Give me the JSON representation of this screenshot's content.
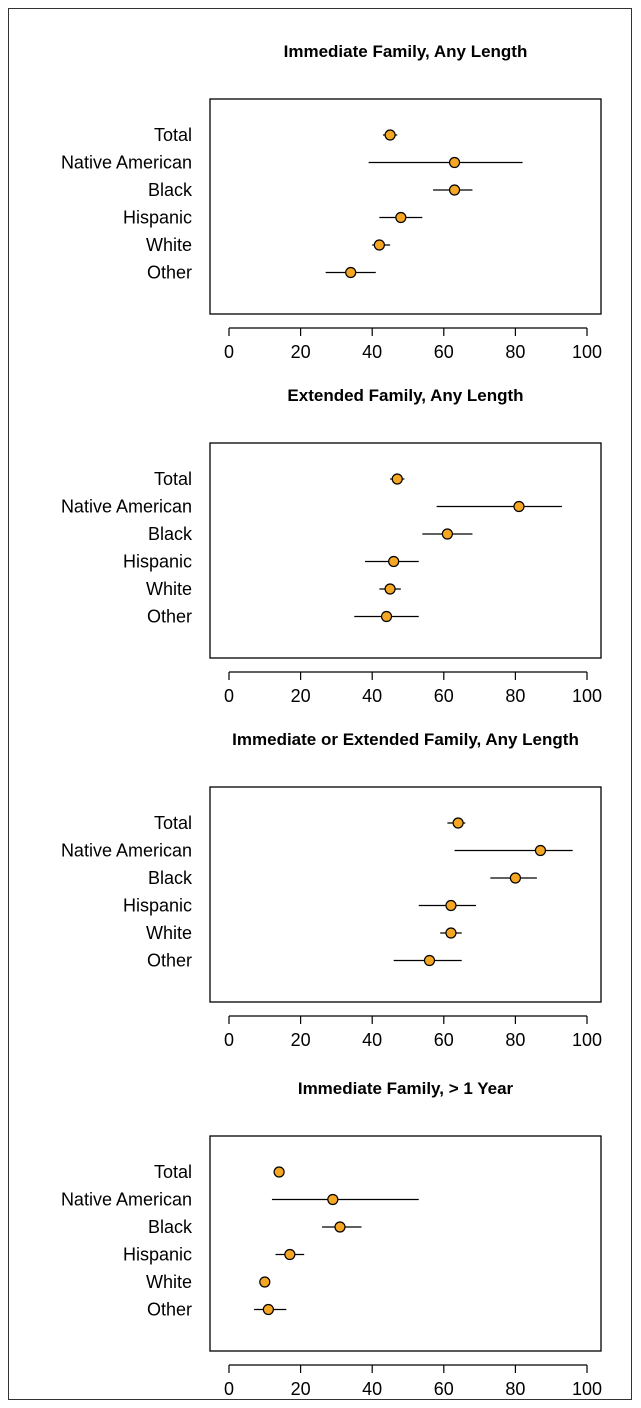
{
  "colors": {
    "point_fill": "#f5a623",
    "point_stroke": "#000000",
    "line": "#000000",
    "frame": "#333333"
  },
  "chart_data": [
    {
      "type": "scatter",
      "title": "Immediate Family, Any Length",
      "categories": [
        "Total",
        "Native American",
        "Black",
        "Hispanic",
        "White",
        "Other"
      ],
      "values": [
        45,
        63,
        63,
        48,
        42,
        34
      ],
      "ci_low": [
        43,
        39,
        57,
        42,
        40,
        27
      ],
      "ci_high": [
        47,
        82,
        68,
        54,
        45,
        41
      ],
      "xlim": [
        0,
        100
      ],
      "xticks": [
        0,
        20,
        40,
        60,
        80,
        100
      ],
      "grid": false
    },
    {
      "type": "scatter",
      "title": "Extended Family, Any Length",
      "categories": [
        "Total",
        "Native American",
        "Black",
        "Hispanic",
        "White",
        "Other"
      ],
      "values": [
        47,
        81,
        61,
        46,
        45,
        44
      ],
      "ci_low": [
        45,
        58,
        54,
        38,
        42,
        35
      ],
      "ci_high": [
        49,
        93,
        68,
        53,
        48,
        53
      ],
      "xlim": [
        0,
        100
      ],
      "xticks": [
        0,
        20,
        40,
        60,
        80,
        100
      ],
      "grid": false
    },
    {
      "type": "scatter",
      "title": "Immediate or Extended Family, Any Length",
      "categories": [
        "Total",
        "Native American",
        "Black",
        "Hispanic",
        "White",
        "Other"
      ],
      "values": [
        64,
        87,
        80,
        62,
        62,
        56
      ],
      "ci_low": [
        61,
        63,
        73,
        53,
        59,
        46
      ],
      "ci_high": [
        66,
        96,
        86,
        69,
        65,
        65
      ],
      "xlim": [
        0,
        100
      ],
      "xticks": [
        0,
        20,
        40,
        60,
        80,
        100
      ],
      "grid": false
    },
    {
      "type": "scatter",
      "title": "Immediate Family, > 1 Year",
      "categories": [
        "Total",
        "Native American",
        "Black",
        "Hispanic",
        "White",
        "Other"
      ],
      "values": [
        14,
        29,
        31,
        17,
        10,
        11
      ],
      "ci_low": [
        13,
        12,
        26,
        13,
        9,
        7
      ],
      "ci_high": [
        15,
        53,
        37,
        21,
        11,
        16
      ],
      "xlim": [
        0,
        100
      ],
      "xticks": [
        0,
        20,
        40,
        60,
        80,
        100
      ],
      "grid": false
    }
  ]
}
